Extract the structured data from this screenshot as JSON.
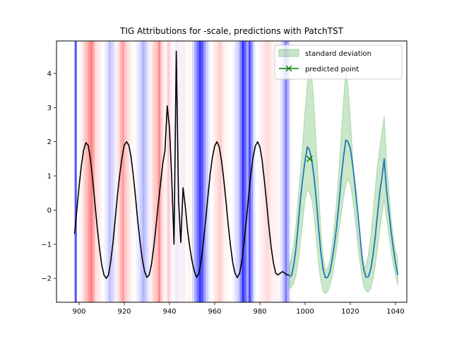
{
  "chart_data": {
    "type": "line",
    "title": "TIG Attributions for -scale, predictions with PatchTST",
    "xlabel": "",
    "ylabel": "",
    "xlim": [
      890,
      1045
    ],
    "ylim": [
      -2.7,
      4.95
    ],
    "xticks": [
      900,
      920,
      940,
      960,
      980,
      1000,
      1020,
      1040
    ],
    "yticks": [
      -2,
      -1,
      0,
      1,
      2,
      3,
      4
    ],
    "grid": false,
    "legend_position": "top-right",
    "legend": [
      {
        "label": "standard deviation",
        "kind": "patch",
        "color": "#2ca02c"
      },
      {
        "label": "predicted point",
        "kind": "marker",
        "color": "#008000"
      }
    ],
    "input_series": {
      "color": "#000000",
      "x": [
        898,
        899,
        900,
        901,
        902,
        903,
        904,
        905,
        906,
        907,
        908,
        909,
        910,
        911,
        912,
        913,
        914,
        915,
        916,
        917,
        918,
        919,
        920,
        921,
        922,
        923,
        924,
        925,
        926,
        927,
        928,
        929,
        930,
        931,
        932,
        933,
        934,
        935,
        936,
        937,
        938,
        939,
        940,
        941,
        942,
        943,
        944,
        945,
        946,
        947,
        948,
        949,
        950,
        951,
        952,
        953,
        954,
        955,
        956,
        957,
        958,
        959,
        960,
        961,
        962,
        963,
        964,
        965,
        966,
        967,
        968,
        969,
        970,
        971,
        972,
        973,
        974,
        975,
        976,
        977,
        978,
        979,
        980,
        981,
        982,
        983,
        984,
        985,
        986,
        987,
        988,
        989,
        990,
        991,
        992,
        993
      ],
      "y": [
        -0.7,
        0.0,
        0.7,
        1.3,
        1.75,
        1.97,
        1.9,
        1.5,
        0.9,
        0.2,
        -0.5,
        -1.1,
        -1.6,
        -1.9,
        -2.0,
        -1.9,
        -1.5,
        -0.95,
        -0.25,
        0.45,
        1.05,
        1.55,
        1.9,
        2.0,
        1.9,
        1.55,
        1.0,
        0.35,
        -0.35,
        -0.95,
        -1.45,
        -1.8,
        -1.97,
        -1.9,
        -1.6,
        -1.1,
        -0.5,
        0.15,
        0.75,
        1.35,
        1.75,
        3.05,
        2.4,
        0.9,
        -1.0,
        4.65,
        0.3,
        -0.95,
        0.65,
        0.1,
        -0.6,
        -1.1,
        -1.5,
        -1.8,
        -1.97,
        -1.85,
        -1.5,
        -0.95,
        -0.3,
        0.4,
        1.05,
        1.55,
        1.88,
        2.0,
        1.85,
        1.45,
        0.9,
        0.25,
        -0.45,
        -1.05,
        -1.55,
        -1.85,
        -1.98,
        -1.85,
        -1.5,
        -0.95,
        -0.3,
        0.4,
        1.05,
        1.55,
        1.88,
        2.0,
        1.85,
        1.45,
        0.85,
        0.2,
        -0.5,
        -1.1,
        -1.55,
        -1.85,
        -1.9,
        -1.85,
        -1.8,
        -1.85,
        -1.9,
        -1.9
      ]
    },
    "forecast_series": {
      "color": "#1f77b4",
      "x": [
        993,
        994,
        995,
        996,
        997,
        998,
        999,
        1000,
        1001,
        1002,
        1003,
        1004,
        1005,
        1006,
        1007,
        1008,
        1009,
        1010,
        1011,
        1012,
        1013,
        1014,
        1015,
        1016,
        1017,
        1018,
        1019,
        1020,
        1021,
        1022,
        1023,
        1024,
        1025,
        1026,
        1027,
        1028,
        1029,
        1030,
        1031,
        1032,
        1033,
        1034,
        1035,
        1036,
        1037,
        1038,
        1039,
        1040,
        1041
      ],
      "y": [
        -1.95,
        -1.92,
        -1.6,
        -1.1,
        -0.4,
        0.35,
        0.95,
        1.45,
        1.85,
        1.75,
        1.45,
        0.95,
        0.25,
        -0.55,
        -1.25,
        -1.75,
        -1.98,
        -1.97,
        -1.8,
        -1.45,
        -1.0,
        -0.45,
        0.2,
        0.95,
        1.55,
        2.05,
        2.0,
        1.8,
        1.35,
        0.8,
        0.15,
        -0.55,
        -1.25,
        -1.75,
        -1.97,
        -1.95,
        -1.75,
        -1.35,
        -0.8,
        -0.15,
        0.5,
        0.95,
        1.5,
        0.6,
        0.0,
        -0.6,
        -1.1,
        -1.55,
        -1.9
      ]
    },
    "std_band": {
      "color": "#2ca02c",
      "opacity": 0.25,
      "x": [
        993,
        994,
        995,
        996,
        997,
        998,
        999,
        1000,
        1001,
        1002,
        1003,
        1004,
        1005,
        1006,
        1007,
        1008,
        1009,
        1010,
        1011,
        1012,
        1013,
        1014,
        1015,
        1016,
        1017,
        1018,
        1019,
        1020,
        1021,
        1022,
        1023,
        1024,
        1025,
        1026,
        1027,
        1028,
        1029,
        1030,
        1031,
        1032,
        1033,
        1034,
        1035,
        1036,
        1037,
        1038,
        1039,
        1040,
        1041
      ],
      "upper": [
        -1.6,
        -1.4,
        -1.0,
        -0.4,
        0.4,
        1.2,
        2.0,
        2.9,
        3.7,
        4.2,
        3.9,
        3.0,
        1.8,
        0.6,
        -0.6,
        -1.4,
        -1.75,
        -1.7,
        -1.45,
        -1.0,
        -0.4,
        0.3,
        1.2,
        2.2,
        3.2,
        4.15,
        3.6,
        2.7,
        1.6,
        0.6,
        -0.3,
        -1.0,
        -1.5,
        -1.7,
        -1.6,
        -1.3,
        -0.8,
        -0.1,
        0.6,
        1.3,
        1.8,
        2.3,
        2.75,
        1.5,
        0.6,
        -0.2,
        -0.8,
        -1.2,
        -1.4
      ],
      "lower": [
        -2.3,
        -2.25,
        -2.15,
        -1.9,
        -1.5,
        -0.9,
        -0.3,
        0.3,
        0.6,
        0.5,
        0.3,
        -0.2,
        -0.9,
        -1.6,
        -2.1,
        -2.4,
        -2.45,
        -2.4,
        -2.2,
        -1.95,
        -1.55,
        -1.1,
        -0.6,
        -0.1,
        0.35,
        0.7,
        0.9,
        0.75,
        0.35,
        -0.2,
        -0.8,
        -1.4,
        -1.9,
        -2.25,
        -2.38,
        -2.4,
        -2.3,
        -2.05,
        -1.65,
        -1.15,
        -0.6,
        -0.15,
        0.3,
        -0.2,
        -0.7,
        -1.2,
        -1.6,
        -1.9,
        -2.2
      ]
    },
    "predicted_point": {
      "x": 1002,
      "y": 1.5,
      "color": "#008000"
    },
    "attribution_bands": {
      "x_start": 898,
      "width": 1,
      "values": [
        -0.65,
        0,
        0.04,
        0.08,
        0.2,
        0.28,
        0.4,
        0.5,
        0.32,
        0.12,
        0.1,
        0.04,
        0,
        -0.05,
        -0.12,
        -0.25,
        -0.18,
        -0.1,
        0.05,
        0.12,
        0.28,
        0.38,
        0.22,
        0.15,
        0.08,
        0.02,
        0,
        -0.05,
        -0.1,
        -0.2,
        -0.3,
        -0.2,
        -0.1,
        0.05,
        0.12,
        0.2,
        0.25,
        0.45,
        0.2,
        0.05,
        0.05,
        0.2,
        0.08,
        0.02,
        -0.05,
        -0.08,
        0.06,
        -0.05,
        0.08,
        0,
        0.05,
        0.02,
        -0.15,
        -0.35,
        -0.55,
        -0.8,
        -0.65,
        -0.4,
        -0.2,
        -0.08,
        0,
        0.05,
        0.1,
        0.15,
        0.2,
        0.1,
        0.05,
        0.03,
        0,
        0,
        -0.05,
        -0.12,
        -0.2,
        -0.45,
        -0.8,
        -0.6,
        -0.35,
        -0.7,
        -0.4,
        -0.1,
        0,
        0.02,
        0.05,
        0.08,
        0.12,
        0.15,
        0.1,
        0.06,
        0.04,
        0.05,
        0.03,
        -0.1,
        -0.25,
        -0.5,
        -0.3,
        -0.05
      ]
    }
  }
}
